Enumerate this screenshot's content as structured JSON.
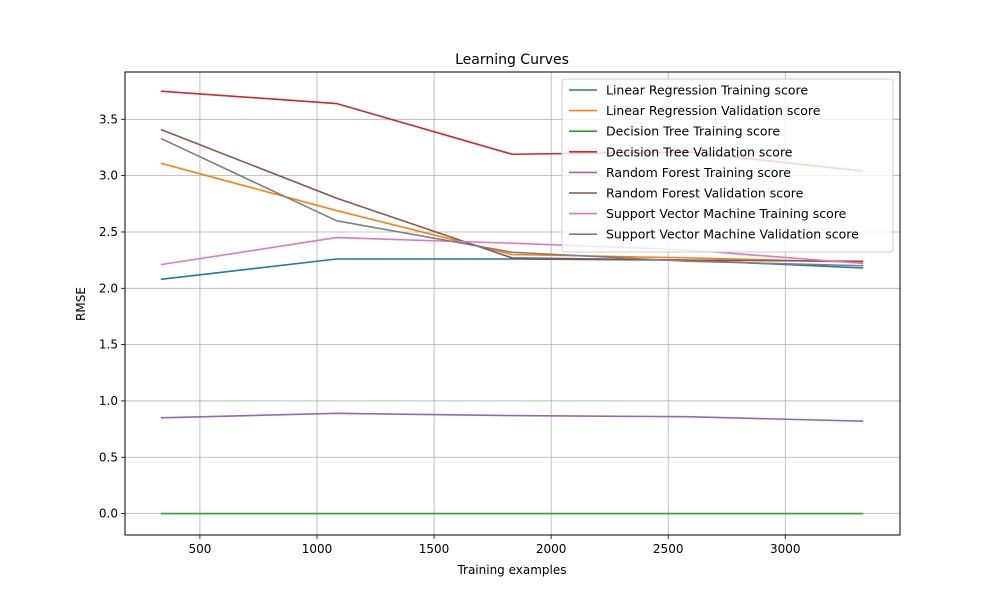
{
  "chart_data": {
    "type": "line",
    "title": "Learning Curves",
    "xlabel": "Training examples",
    "ylabel": "RMSE",
    "xlim": [
      180,
      3490
    ],
    "ylim": [
      -0.19,
      3.92
    ],
    "xticks": [
      500,
      1000,
      1500,
      2000,
      2500,
      3000
    ],
    "yticks": [
      0.0,
      0.5,
      1.0,
      1.5,
      2.0,
      2.5,
      3.0,
      3.5
    ],
    "grid": true,
    "legend_position": "top-right",
    "x": [
      333,
      1083,
      1833,
      2583,
      3333
    ],
    "series": [
      {
        "name": "Linear Regression Training score",
        "color": "#1f77b4",
        "values": [
          2.08,
          2.26,
          2.26,
          2.25,
          2.18
        ]
      },
      {
        "name": "Linear Regression Validation score",
        "color": "#ff7f0e",
        "values": [
          3.11,
          2.69,
          2.3,
          2.27,
          2.23
        ]
      },
      {
        "name": "Decision Tree Training score",
        "color": "#2ca02c",
        "values": [
          0.0,
          0.0,
          0.0,
          0.0,
          0.0
        ]
      },
      {
        "name": "Decision Tree Validation score",
        "color": "#d62728",
        "values": [
          3.75,
          3.64,
          3.19,
          3.21,
          3.04
        ]
      },
      {
        "name": "Random Forest Training score",
        "color": "#9467bd",
        "values": [
          0.85,
          0.89,
          0.87,
          0.86,
          0.82
        ]
      },
      {
        "name": "Random Forest Validation score",
        "color": "#8c564b",
        "values": [
          3.41,
          2.8,
          2.27,
          2.25,
          2.24
        ]
      },
      {
        "name": "Support Vector Machine Training score",
        "color": "#e377c2",
        "values": [
          2.21,
          2.45,
          2.4,
          2.34,
          2.22
        ]
      },
      {
        "name": "Support Vector Machine Validation score",
        "color": "#7f7f7f",
        "values": [
          3.33,
          2.6,
          2.32,
          2.24,
          2.2
        ]
      }
    ]
  }
}
